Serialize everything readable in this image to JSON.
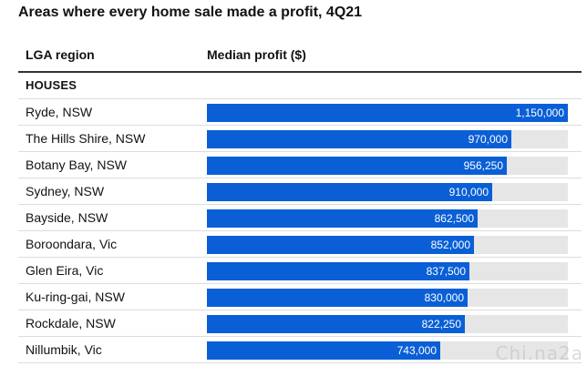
{
  "title": "Areas where every home sale made a profit, 4Q21",
  "table_headers": {
    "region": "LGA region",
    "profit": "Median profit ($)"
  },
  "section_label": "HOUSES",
  "watermark": "Chi.na2a",
  "colors": {
    "bar": "#0a5fd6",
    "track": "#e6e6e6"
  },
  "chart_data": {
    "type": "bar",
    "orientation": "horizontal",
    "title": "Areas where every home sale made a profit, 4Q21",
    "xlabel": "Median profit ($)",
    "ylabel": "LGA region",
    "xlim": [
      0,
      1150000
    ],
    "categories": [
      "Ryde, NSW",
      "The Hills Shire, NSW",
      "Botany Bay, NSW",
      "Sydney, NSW",
      "Bayside, NSW",
      "Boroondara, Vic",
      "Glen Eira, Vic",
      "Ku-ring-gai, NSW",
      "Rockdale, NSW",
      "Nillumbik, Vic"
    ],
    "values": [
      1150000,
      970000,
      956250,
      910000,
      862500,
      852000,
      837500,
      830000,
      822250,
      743000
    ],
    "value_labels": [
      "1,150,000",
      "970,000",
      "956,250",
      "910,000",
      "862,500",
      "852,000",
      "837,500",
      "830,000",
      "822,250",
      "743,000"
    ]
  }
}
